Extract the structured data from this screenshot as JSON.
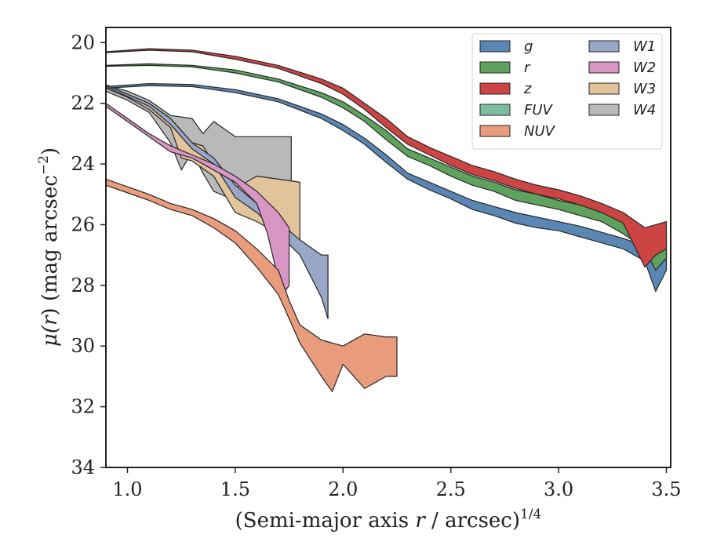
{
  "chart_data": {
    "type": "area",
    "xlabel_main": "(Semi-major axis ",
    "xlabel_var": "r",
    "xlabel_tail": " / arcsec)",
    "xlabel_sup": "1/4",
    "ylabel_pre": "μ(",
    "ylabel_var": "r",
    "ylabel_mid": ") (mag arcsec",
    "ylabel_sup": "−2",
    "ylabel_post": ")",
    "xlim": [
      0.9,
      3.52
    ],
    "ylim": [
      34,
      19.5
    ],
    "y_inverted": true,
    "xticks": [
      1.0,
      1.5,
      2.0,
      2.5,
      3.0,
      3.5
    ],
    "xtick_labels": [
      "1.0",
      "1.5",
      "2.0",
      "2.5",
      "3.0",
      "3.5"
    ],
    "yticks": [
      20,
      22,
      24,
      26,
      28,
      30,
      32,
      34
    ],
    "ytick_labels": [
      "20",
      "22",
      "24",
      "26",
      "28",
      "30",
      "32",
      "34"
    ],
    "legend_position": "top-right",
    "legend_columns": 2,
    "series": [
      {
        "name": "g",
        "color": "#5a86b4",
        "upper": [
          [
            0.9,
            21.45
          ],
          [
            1.1,
            21.35
          ],
          [
            1.3,
            21.38
          ],
          [
            1.5,
            21.55
          ],
          [
            1.7,
            21.85
          ],
          [
            1.9,
            22.35
          ],
          [
            2.0,
            22.7
          ],
          [
            2.1,
            23.15
          ],
          [
            2.2,
            23.7
          ],
          [
            2.3,
            24.3
          ],
          [
            2.4,
            24.6
          ],
          [
            2.5,
            24.9
          ],
          [
            2.6,
            25.2
          ],
          [
            2.7,
            25.4
          ],
          [
            2.8,
            25.6
          ],
          [
            2.9,
            25.75
          ],
          [
            3.0,
            25.9
          ],
          [
            3.1,
            26.05
          ],
          [
            3.2,
            26.25
          ],
          [
            3.3,
            26.45
          ],
          [
            3.4,
            26.7
          ],
          [
            3.5,
            26.8
          ]
        ],
        "lower": [
          [
            0.9,
            21.5
          ],
          [
            1.1,
            21.42
          ],
          [
            1.3,
            21.45
          ],
          [
            1.5,
            21.65
          ],
          [
            1.7,
            21.95
          ],
          [
            1.9,
            22.5
          ],
          [
            2.0,
            22.9
          ],
          [
            2.1,
            23.35
          ],
          [
            2.2,
            23.95
          ],
          [
            2.3,
            24.5
          ],
          [
            2.4,
            24.85
          ],
          [
            2.5,
            25.15
          ],
          [
            2.6,
            25.5
          ],
          [
            2.7,
            25.7
          ],
          [
            2.8,
            25.95
          ],
          [
            2.9,
            26.1
          ],
          [
            3.0,
            26.2
          ],
          [
            3.1,
            26.4
          ],
          [
            3.2,
            26.6
          ],
          [
            3.3,
            26.8
          ],
          [
            3.4,
            27.2
          ],
          [
            3.45,
            28.2
          ],
          [
            3.5,
            27.5
          ]
        ]
      },
      {
        "name": "r",
        "color": "#5ea25e",
        "upper": [
          [
            0.9,
            20.75
          ],
          [
            1.1,
            20.7
          ],
          [
            1.3,
            20.75
          ],
          [
            1.5,
            20.9
          ],
          [
            1.7,
            21.2
          ],
          [
            1.9,
            21.65
          ],
          [
            2.0,
            21.95
          ],
          [
            2.1,
            22.4
          ],
          [
            2.2,
            22.9
          ],
          [
            2.3,
            23.5
          ],
          [
            2.4,
            23.8
          ],
          [
            2.5,
            24.1
          ],
          [
            2.6,
            24.4
          ],
          [
            2.7,
            24.6
          ],
          [
            2.8,
            24.85
          ],
          [
            2.9,
            25.0
          ],
          [
            3.0,
            25.2
          ],
          [
            3.1,
            25.35
          ],
          [
            3.2,
            25.6
          ],
          [
            3.3,
            25.9
          ],
          [
            3.4,
            26.2
          ],
          [
            3.5,
            26.4
          ]
        ],
        "lower": [
          [
            0.9,
            20.78
          ],
          [
            1.1,
            20.75
          ],
          [
            1.3,
            20.8
          ],
          [
            1.5,
            21.0
          ],
          [
            1.7,
            21.3
          ],
          [
            1.9,
            21.8
          ],
          [
            2.0,
            22.15
          ],
          [
            2.1,
            22.6
          ],
          [
            2.2,
            23.2
          ],
          [
            2.3,
            23.75
          ],
          [
            2.4,
            24.05
          ],
          [
            2.5,
            24.4
          ],
          [
            2.6,
            24.7
          ],
          [
            2.7,
            24.9
          ],
          [
            2.8,
            25.2
          ],
          [
            2.9,
            25.35
          ],
          [
            3.0,
            25.5
          ],
          [
            3.1,
            25.7
          ],
          [
            3.2,
            25.9
          ],
          [
            3.3,
            26.3
          ],
          [
            3.4,
            26.8
          ],
          [
            3.45,
            27.5
          ],
          [
            3.5,
            27.1
          ]
        ]
      },
      {
        "name": "z",
        "color": "#cc4444",
        "upper": [
          [
            0.9,
            20.3
          ],
          [
            1.1,
            20.2
          ],
          [
            1.3,
            20.25
          ],
          [
            1.5,
            20.45
          ],
          [
            1.7,
            20.75
          ],
          [
            1.9,
            21.2
          ],
          [
            2.0,
            21.5
          ],
          [
            2.1,
            22.0
          ],
          [
            2.2,
            22.5
          ],
          [
            2.3,
            23.1
          ],
          [
            2.4,
            23.45
          ],
          [
            2.5,
            23.75
          ],
          [
            2.6,
            24.05
          ],
          [
            2.7,
            24.25
          ],
          [
            2.8,
            24.5
          ],
          [
            2.9,
            24.7
          ],
          [
            3.0,
            24.85
          ],
          [
            3.1,
            25.05
          ],
          [
            3.2,
            25.3
          ],
          [
            3.3,
            25.6
          ],
          [
            3.4,
            26.1
          ],
          [
            3.5,
            25.9
          ]
        ],
        "lower": [
          [
            0.9,
            20.33
          ],
          [
            1.1,
            20.25
          ],
          [
            1.3,
            20.3
          ],
          [
            1.5,
            20.55
          ],
          [
            1.7,
            20.85
          ],
          [
            1.9,
            21.35
          ],
          [
            2.0,
            21.7
          ],
          [
            2.1,
            22.2
          ],
          [
            2.2,
            22.8
          ],
          [
            2.3,
            23.35
          ],
          [
            2.4,
            23.7
          ],
          [
            2.5,
            24.05
          ],
          [
            2.6,
            24.35
          ],
          [
            2.7,
            24.55
          ],
          [
            2.8,
            24.8
          ],
          [
            2.9,
            25.0
          ],
          [
            3.0,
            25.15
          ],
          [
            3.1,
            25.35
          ],
          [
            3.2,
            25.6
          ],
          [
            3.3,
            25.95
          ],
          [
            3.4,
            27.4
          ],
          [
            3.45,
            27.0
          ],
          [
            3.5,
            26.8
          ]
        ]
      },
      {
        "name": "FUV",
        "color": "#7dbba2",
        "upper": [],
        "lower": []
      },
      {
        "name": "NUV",
        "color": "#e89c7c",
        "upper": [
          [
            0.9,
            24.5
          ],
          [
            1.1,
            25.0
          ],
          [
            1.2,
            25.3
          ],
          [
            1.3,
            25.5
          ],
          [
            1.4,
            25.8
          ],
          [
            1.5,
            26.2
          ],
          [
            1.6,
            26.8
          ],
          [
            1.7,
            27.5
          ],
          [
            1.75,
            28.5
          ],
          [
            1.8,
            29.3
          ],
          [
            1.9,
            29.8
          ],
          [
            2.0,
            30.0
          ],
          [
            2.1,
            29.6
          ],
          [
            2.2,
            29.7
          ],
          [
            2.25,
            29.7
          ]
        ],
        "lower": [
          [
            0.9,
            24.7
          ],
          [
            1.1,
            25.2
          ],
          [
            1.2,
            25.5
          ],
          [
            1.3,
            25.7
          ],
          [
            1.4,
            26.1
          ],
          [
            1.5,
            26.6
          ],
          [
            1.6,
            27.4
          ],
          [
            1.7,
            28.3
          ],
          [
            1.75,
            29.1
          ],
          [
            1.8,
            29.9
          ],
          [
            1.9,
            31.0
          ],
          [
            1.95,
            31.5
          ],
          [
            2.0,
            30.6
          ],
          [
            2.1,
            31.4
          ],
          [
            2.2,
            31.0
          ],
          [
            2.25,
            31.0
          ]
        ]
      },
      {
        "name": "W1",
        "color": "#98a7c8",
        "upper": [
          [
            0.9,
            21.4
          ],
          [
            1.1,
            22.0
          ],
          [
            1.2,
            22.5
          ],
          [
            1.3,
            23.3
          ],
          [
            1.4,
            23.8
          ],
          [
            1.5,
            24.7
          ],
          [
            1.6,
            25.3
          ],
          [
            1.7,
            25.9
          ],
          [
            1.8,
            26.5
          ],
          [
            1.9,
            27.0
          ],
          [
            1.93,
            27.0
          ]
        ],
        "lower": [
          [
            0.9,
            21.45
          ],
          [
            1.1,
            22.1
          ],
          [
            1.2,
            22.7
          ],
          [
            1.3,
            23.5
          ],
          [
            1.4,
            24.0
          ],
          [
            1.5,
            25.1
          ],
          [
            1.6,
            25.6
          ],
          [
            1.7,
            26.3
          ],
          [
            1.8,
            27.0
          ],
          [
            1.9,
            28.4
          ],
          [
            1.93,
            29.1
          ]
        ]
      },
      {
        "name": "W2",
        "color": "#d896c5",
        "upper": [
          [
            0.9,
            22.0
          ],
          [
            1.0,
            22.5
          ],
          [
            1.1,
            23.0
          ],
          [
            1.2,
            23.4
          ],
          [
            1.3,
            23.7
          ],
          [
            1.4,
            24.0
          ],
          [
            1.5,
            24.4
          ],
          [
            1.6,
            24.9
          ],
          [
            1.7,
            25.6
          ],
          [
            1.75,
            26.1
          ]
        ],
        "lower": [
          [
            0.9,
            22.1
          ],
          [
            1.0,
            22.6
          ],
          [
            1.1,
            23.1
          ],
          [
            1.2,
            23.6
          ],
          [
            1.3,
            23.8
          ],
          [
            1.4,
            24.2
          ],
          [
            1.5,
            24.6
          ],
          [
            1.6,
            25.3
          ],
          [
            1.65,
            26.3
          ],
          [
            1.7,
            27.8
          ],
          [
            1.73,
            28.2
          ],
          [
            1.75,
            28.0
          ]
        ]
      },
      {
        "name": "W3",
        "color": "#e1c49c",
        "upper": [
          [
            0.9,
            21.4
          ],
          [
            1.0,
            21.7
          ],
          [
            1.1,
            22.0
          ],
          [
            1.2,
            22.5
          ],
          [
            1.3,
            23.3
          ],
          [
            1.35,
            23.4
          ],
          [
            1.4,
            24.0
          ],
          [
            1.5,
            24.8
          ],
          [
            1.6,
            24.4
          ],
          [
            1.7,
            24.5
          ],
          [
            1.8,
            24.6
          ]
        ],
        "lower": [
          [
            0.9,
            21.5
          ],
          [
            1.0,
            21.8
          ],
          [
            1.1,
            22.2
          ],
          [
            1.2,
            22.8
          ],
          [
            1.25,
            23.8
          ],
          [
            1.3,
            23.9
          ],
          [
            1.4,
            24.4
          ],
          [
            1.5,
            25.6
          ],
          [
            1.6,
            25.9
          ],
          [
            1.7,
            26.3
          ],
          [
            1.8,
            26.7
          ]
        ]
      },
      {
        "name": "W4",
        "color": "#b9b9b9",
        "upper": [
          [
            0.9,
            21.4
          ],
          [
            1.0,
            21.6
          ],
          [
            1.1,
            21.9
          ],
          [
            1.2,
            22.4
          ],
          [
            1.3,
            22.5
          ],
          [
            1.35,
            23.0
          ],
          [
            1.4,
            22.6
          ],
          [
            1.5,
            23.1
          ],
          [
            1.6,
            23.1
          ],
          [
            1.7,
            23.1
          ],
          [
            1.76,
            23.1
          ]
        ],
        "lower": [
          [
            0.9,
            21.6
          ],
          [
            1.0,
            21.9
          ],
          [
            1.1,
            22.3
          ],
          [
            1.2,
            23.3
          ],
          [
            1.25,
            24.2
          ],
          [
            1.3,
            23.6
          ],
          [
            1.35,
            24.3
          ],
          [
            1.4,
            24.9
          ],
          [
            1.5,
            25.2
          ],
          [
            1.6,
            25.0
          ],
          [
            1.7,
            25.0
          ],
          [
            1.76,
            25.0
          ]
        ]
      }
    ]
  }
}
